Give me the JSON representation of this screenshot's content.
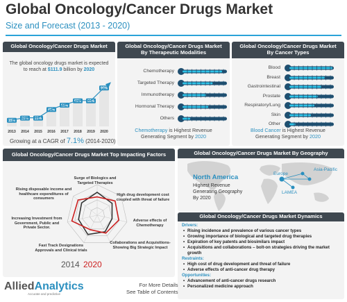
{
  "header": {
    "title": "Global Oncology/Cancer Drugs Market",
    "subtitle": "Size and Forecast (2013 - 2020)"
  },
  "market_panel": {
    "title": "Global Oncology/Cancer Drugs Market",
    "text_pre": "The global oncology drugs market is expected to reach at ",
    "text_value": "$111.9",
    "text_mid": " billion by ",
    "text_year": "2020",
    "cagr_pre": "Growing at a CAGR of ",
    "cagr_value": "7.1%",
    "cagr_post": " (2014-2020)"
  },
  "modalities_panel": {
    "title_line1": "Global Oncology/Cancer Drugs Market",
    "title_line2": "By Therapeutic Modalities",
    "note_highlight": "Chemotherapy",
    "note_rest": " is Highest Revenue",
    "note_line2": "Generating Segment by ",
    "note_year": "2020"
  },
  "types_panel": {
    "title_line1": "Global Oncology/Cancer Drugs Market",
    "title_line2": "By Cancer Types",
    "note_highlight": "Blood Cancer",
    "note_rest": " is Highest Revenue",
    "note_line2": "Generating Segment by ",
    "note_year": "2020"
  },
  "factors_panel": {
    "title": "Global Oncology/Cancer Drugs Market Top Impacting Factors",
    "factors": [
      "Surge of Biologics and Targeted Therapies",
      "High drug development cost coupled with threat of failure",
      "Adverse effects of Chemotherapy",
      "Collaborations and Acquisitions- Showing Big Strategic Impact",
      "Fast Track Designations Approvals and Clinical trials",
      "Increasing Investment from Government, Public and Private Sector.",
      "Rising disposable income and healthcare expenditures of consumers"
    ],
    "legend_2014": "2014",
    "legend_2020": "2020"
  },
  "geography_panel": {
    "title": "Global Oncology/Cancer Drugs Market By Geography",
    "region": "North America",
    "line1": "Highest Revenue",
    "line2": "Generating Geography",
    "line3": "By 2020",
    "map_labels": {
      "europe": "Europe",
      "asia": "Asia-Pacific",
      "lamea": "LAMEA"
    }
  },
  "dynamics_panel": {
    "title": "Global Oncology/Cancer Drugs Market Dynamics",
    "drivers_label": "Drivers:",
    "drivers": [
      "Rising incidence and prevalence of various cancer types",
      "Growing importance of biological and targeted drug therapies",
      "Expiration of key patents and biosimilars impact",
      "Acquisitions and collaborations – bolt-on strategies driving the market growth"
    ],
    "restraints_label": "Restraints:",
    "restraints": [
      "High cost of drug development and threat of failure",
      "Adverse effects of anti-cancer drug therapy"
    ],
    "opportunities_label": "Opportunities:",
    "opportunities": [
      "Advancement of anti-cancer drugs research",
      "Personalized medicine approach"
    ]
  },
  "footer": {
    "logo_part1": "Allied",
    "logo_part2": "Analytics",
    "tagline": "Accurate and predictive",
    "more_line1": "For More Details",
    "more_line2": "See Table of Contents"
  },
  "chart_data": [
    {
      "type": "bar",
      "categories": [
        "2013",
        "2014",
        "2015",
        "2016",
        "2017",
        "2018",
        "2019",
        "2020"
      ],
      "values": [
        15,
        20,
        20,
        40,
        50,
        60,
        60,
        90
      ],
      "value_labels": [
        "15%",
        "20%",
        "20%",
        "40%",
        "50%",
        "60%",
        "60%",
        "90%"
      ]
    },
    {
      "type": "bar",
      "orientation": "horizontal",
      "categories": [
        "Chemotherapy",
        "Targeted Therapy",
        "Immunotherapy",
        "Hormonal Therapy",
        "Others"
      ],
      "values": [
        92,
        70,
        55,
        60,
        18
      ]
    },
    {
      "type": "bar",
      "orientation": "horizontal",
      "categories": [
        "Blood",
        "Breast",
        "Gastrointestinal",
        "Prostate",
        "Respiratory/Lung",
        "Skin",
        "Other"
      ],
      "values": [
        100,
        82,
        74,
        66,
        58,
        50,
        14
      ]
    },
    {
      "type": "radar",
      "series": [
        {
          "name": "2014",
          "color": "#333333",
          "values": [
            3,
            2.5,
            2,
            2.4,
            2.8,
            2.5,
            2.6
          ]
        },
        {
          "name": "2020",
          "color": "#cc1f1f",
          "values": [
            2.4,
            3,
            2.9,
            2.6,
            2.1,
            3.4,
            3.2
          ]
        }
      ],
      "levels": 4
    }
  ],
  "colors": {
    "accent": "#2a8fbf",
    "dark": "#3f4850",
    "series_2020": "#cc1f1f"
  }
}
